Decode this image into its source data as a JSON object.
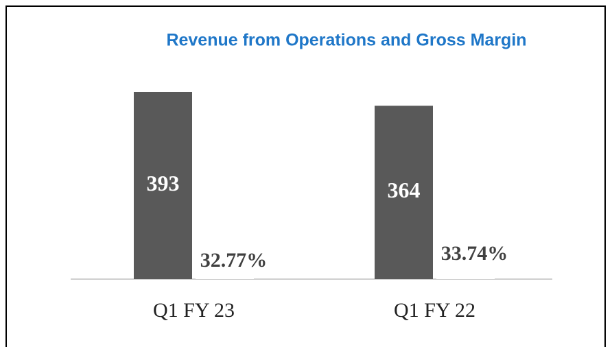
{
  "chart_data": {
    "type": "bar",
    "title": "Revenue from Operations and Gross Margin",
    "categories": [
      "Q1 FY 23",
      "Q1 FY 22"
    ],
    "series": [
      {
        "color": "#595959",
        "values": [
          393,
          364
        ]
      },
      {
        "color": "#ffffff",
        "values": [
          32.77,
          33.74
        ],
        "value_labels": [
          "32.77%",
          "33.74%"
        ]
      }
    ]
  }
}
